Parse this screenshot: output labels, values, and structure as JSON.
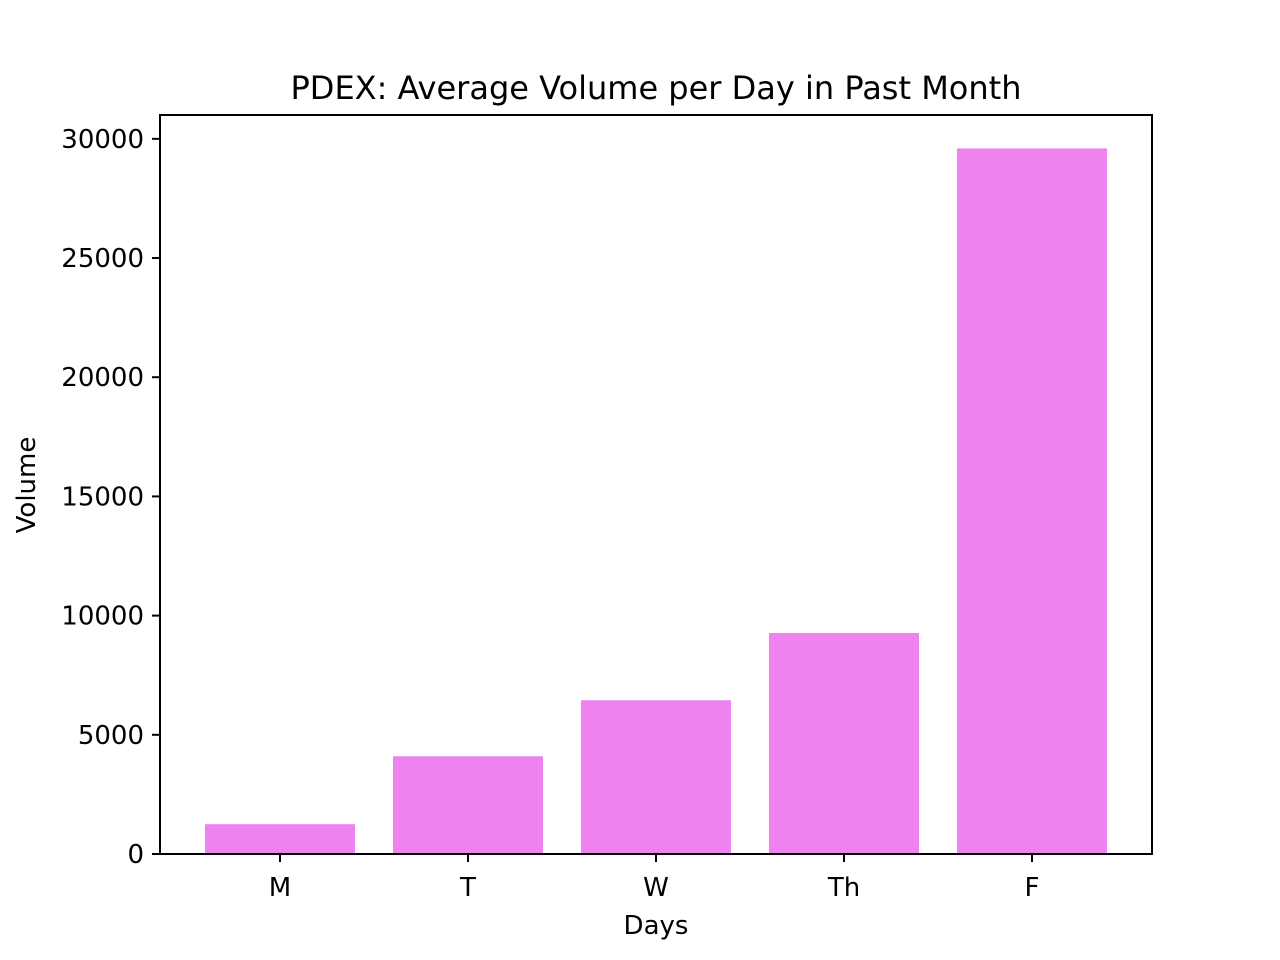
{
  "chart_data": {
    "type": "bar",
    "title": "PDEX: Average Volume per Day in Past Month",
    "xlabel": "Days",
    "ylabel": "Volume",
    "categories": [
      "M",
      "T",
      "W",
      "Th",
      "F"
    ],
    "values": [
      1250,
      4100,
      6450,
      9270,
      29600
    ],
    "ylim": [
      0,
      31000
    ],
    "yticks": [
      0,
      5000,
      10000,
      15000,
      20000,
      25000,
      30000
    ],
    "ytick_labels": [
      "0",
      "5000",
      "10000",
      "15000",
      "20000",
      "25000",
      "30000"
    ],
    "grid": false,
    "legend": "none",
    "bar_color": "#ee82ee"
  }
}
